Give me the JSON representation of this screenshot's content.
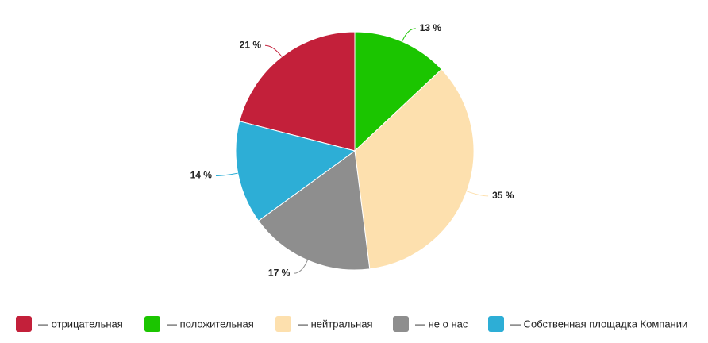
{
  "chart_data": {
    "type": "pie",
    "categories": [
      "— отрицательная",
      "— положительная",
      "— нейтральная",
      "— не о нас",
      "— Собственная площадка Компании"
    ],
    "values": [
      21,
      13,
      35,
      17,
      14
    ],
    "value_labels": [
      "21 %",
      "13 %",
      "35 %",
      "17 %",
      "14 %"
    ],
    "colors": [
      "#c3203a",
      "#1bc500",
      "#fde0ae",
      "#8e8e8e",
      "#2daed6"
    ],
    "legend": "bottom"
  }
}
